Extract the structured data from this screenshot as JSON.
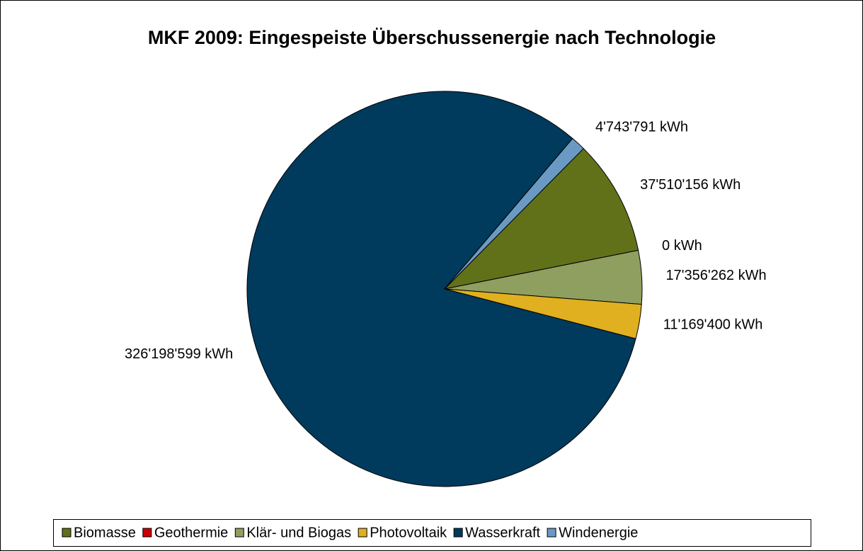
{
  "chart_data": {
    "type": "pie",
    "title": "MKF 2009: Eingespeiste Überschussenergie nach Technologie",
    "categories": [
      "Biomasse",
      "Geothermie",
      "Klär- und Biogas",
      "Photovoltaik",
      "Wasserkraft",
      "Windenergie"
    ],
    "values": [
      37510156,
      0,
      17356262,
      11169400,
      326198599,
      4743791
    ],
    "value_labels": [
      "37'510'156 kWh",
      "0 kWh",
      "17'356'262 kWh",
      "11'169'400 kWh",
      "326'198'599 kWh",
      "4'743'791 kWh"
    ],
    "colors": [
      "#617119",
      "#cc0000",
      "#8f9f5f",
      "#e0b020",
      "#003a5c",
      "#6a9ac4"
    ],
    "legend": "bottom"
  }
}
